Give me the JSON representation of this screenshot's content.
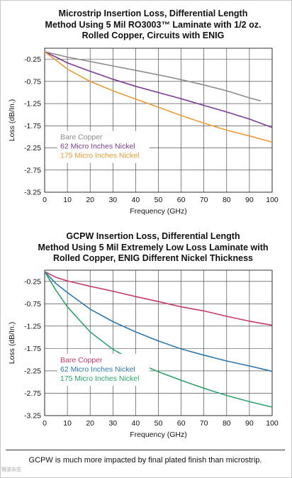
{
  "caption": "GCPW is much more impacted by final plated finish than microstrip.",
  "watermark": "微波杂志",
  "chart_data": [
    {
      "type": "line",
      "title_lines": [
        "Microstrip Insertion Loss, Differential Length",
        "Method Using 5 Mil RO3003™ Laminate with 1/2 oz.",
        "Rolled Copper, Circuits with ENIG"
      ],
      "xlabel": "Frequency (GHz)",
      "ylabel": "Loss (dB/In.)",
      "xlim": [
        0,
        100
      ],
      "ylim": [
        -3.25,
        0
      ],
      "xticks": [
        0,
        10,
        20,
        30,
        40,
        50,
        60,
        70,
        80,
        90,
        100
      ],
      "yticks": [
        -0.25,
        -0.75,
        -1.25,
        -1.75,
        -2.25,
        -2.75,
        -3.25
      ],
      "ytick_labels": [
        "-0.25",
        "-0.75",
        "-1.25",
        "-1.75",
        "-2.25",
        "-2.75",
        "-3.25"
      ],
      "grid": true,
      "legend_position": "lower-left",
      "series": [
        {
          "name": "Bare Copper",
          "color": "#8c8c8c",
          "x": [
            0,
            5,
            10,
            20,
            30,
            40,
            50,
            60,
            70,
            80,
            90,
            95
          ],
          "y": [
            -0.08,
            -0.14,
            -0.2,
            -0.3,
            -0.4,
            -0.5,
            -0.6,
            -0.71,
            -0.83,
            -0.96,
            -1.12,
            -1.19
          ]
        },
        {
          "name": "62 Micro Inches Nickel",
          "color": "#7b3a96",
          "x": [
            0,
            5,
            10,
            20,
            30,
            40,
            50,
            60,
            70,
            80,
            90,
            100
          ],
          "y": [
            -0.08,
            -0.2,
            -0.33,
            -0.52,
            -0.7,
            -0.86,
            -1.0,
            -1.14,
            -1.29,
            -1.44,
            -1.6,
            -1.79
          ]
        },
        {
          "name": "175 Micro Inches Nickel",
          "color": "#ef9b33",
          "x": [
            0,
            5,
            10,
            20,
            30,
            40,
            50,
            60,
            70,
            80,
            90,
            100
          ],
          "y": [
            -0.08,
            -0.27,
            -0.47,
            -0.75,
            -0.96,
            -1.15,
            -1.33,
            -1.52,
            -1.69,
            -1.85,
            -1.98,
            -2.12
          ]
        }
      ]
    },
    {
      "type": "line",
      "title_lines": [
        "GCPW Insertion Loss, Differential Length",
        "Method Using 5 Mil Extremely Low Loss Laminate with",
        "Rolled Copper, ENIG Different Nickel Thickness"
      ],
      "xlabel": "Frequency (GHz)",
      "ylabel": "Loss (dB/In.)",
      "xlim": [
        0,
        100
      ],
      "ylim": [
        -3.25,
        0
      ],
      "xticks": [
        0,
        10,
        20,
        30,
        40,
        50,
        60,
        70,
        80,
        90,
        100
      ],
      "yticks": [
        -0.25,
        -0.75,
        -1.25,
        -1.75,
        -2.25,
        -2.75,
        -3.25
      ],
      "ytick_labels": [
        "-0.25",
        "-0.75",
        "-1.25",
        "-1.75",
        "-2.25",
        "-2.75",
        "-3.25"
      ],
      "grid": true,
      "legend_position": "lower-left",
      "series": [
        {
          "name": "Bare Copper",
          "color": "#c8386a",
          "x": [
            0,
            5,
            10,
            20,
            30,
            40,
            50,
            60,
            70,
            80,
            90,
            100
          ],
          "y": [
            -0.03,
            -0.16,
            -0.24,
            -0.36,
            -0.47,
            -0.59,
            -0.7,
            -0.82,
            -0.91,
            -1.03,
            -1.14,
            -1.23
          ]
        },
        {
          "name": "62 Micro Inches Nickel",
          "color": "#2c79b0",
          "x": [
            0,
            5,
            10,
            20,
            30,
            40,
            50,
            60,
            70,
            80,
            90,
            100
          ],
          "y": [
            -0.03,
            -0.3,
            -0.5,
            -0.87,
            -1.15,
            -1.38,
            -1.58,
            -1.76,
            -1.9,
            -2.03,
            -2.14,
            -2.26
          ]
        },
        {
          "name": "175 Micro Inches Nickel",
          "color": "#2aa56b",
          "x": [
            0,
            5,
            10,
            20,
            30,
            40,
            50,
            60,
            70,
            80,
            90,
            100
          ],
          "y": [
            -0.03,
            -0.45,
            -0.82,
            -1.38,
            -1.77,
            -2.05,
            -2.27,
            -2.46,
            -2.64,
            -2.8,
            -2.94,
            -3.06
          ]
        }
      ]
    }
  ]
}
